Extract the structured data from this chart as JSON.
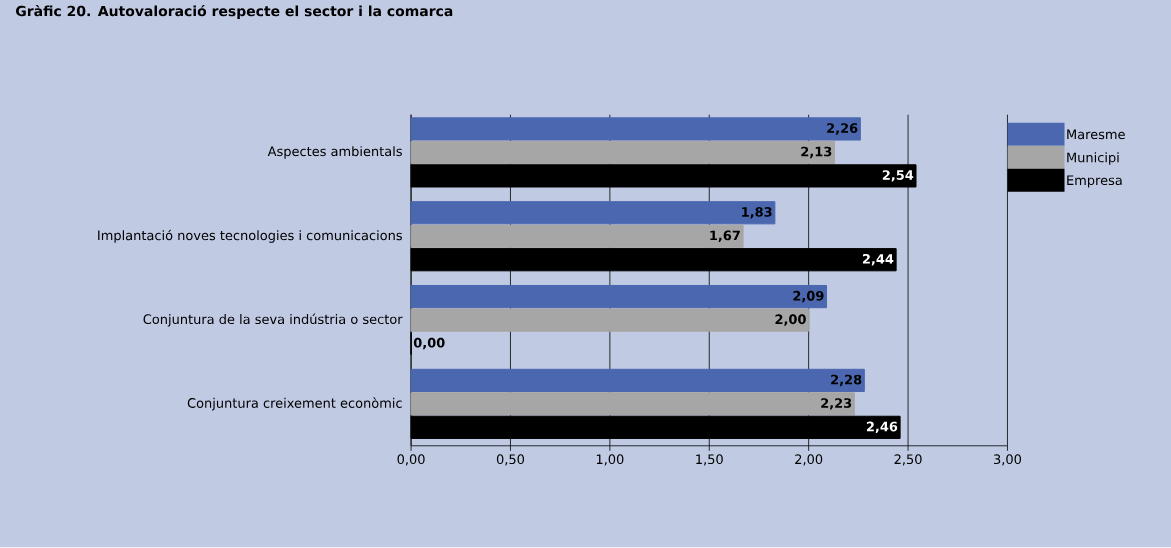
{
  "chart_data": {
    "type": "bar",
    "orientation": "horizontal",
    "title": "Gràfic 20. Autovaloració respecte el sector i la comarca",
    "categories": [
      "Aspectes ambientals",
      "Implantació noves tecnologies i comunicacions",
      "Conjuntura de la seva indústria o sector",
      "Conjuntura creixement econòmic"
    ],
    "series": [
      {
        "name": "Maresme",
        "color": "#4a67b0",
        "values": [
          2.26,
          1.83,
          2.09,
          2.28
        ],
        "value_labels": [
          "2,26",
          "1,83",
          "2,09",
          "2,28"
        ]
      },
      {
        "name": "Municipi",
        "color": "#a6a6a6",
        "values": [
          2.13,
          1.67,
          2.0,
          2.23
        ],
        "value_labels": [
          "2,13",
          "1,67",
          "2,00",
          "2,23"
        ]
      },
      {
        "name": "Empresa",
        "color": "#000000",
        "values": [
          2.54,
          2.44,
          0.0,
          2.46
        ],
        "value_labels": [
          "2,54",
          "2,44",
          "0,00",
          "2,46"
        ]
      }
    ],
    "xlim": [
      0,
      3
    ],
    "xticks": [
      {
        "value": 0,
        "label": "0,00"
      },
      {
        "value": 0.5,
        "label": "0,50"
      },
      {
        "value": 1,
        "label": "1,00"
      },
      {
        "value": 1.5,
        "label": "1,50"
      },
      {
        "value": 2,
        "label": "2,00"
      },
      {
        "value": 2.5,
        "label": "2,50"
      },
      {
        "value": 3,
        "label": "3,00"
      }
    ],
    "grid": "x",
    "legend": "top right"
  }
}
